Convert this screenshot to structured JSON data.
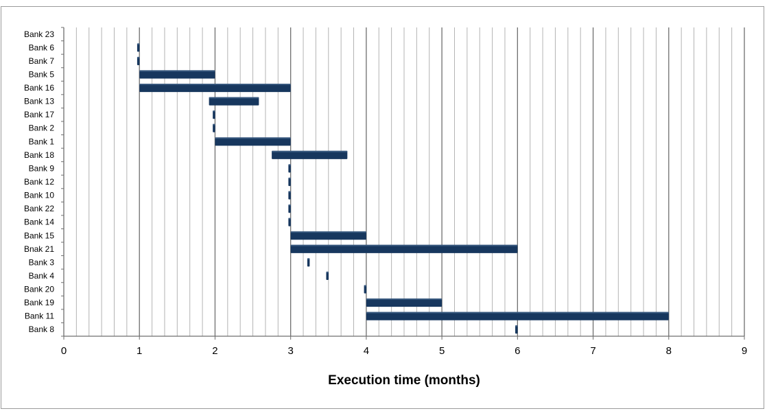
{
  "chart_data": {
    "type": "bar",
    "subtype": "floating-horizontal-gantt",
    "title": "",
    "xlabel": "Execution time (months)",
    "ylabel": "",
    "xlim": [
      0,
      9
    ],
    "x_ticks": [
      "0",
      "1",
      "2",
      "3",
      "4",
      "5",
      "6",
      "7",
      "8",
      "9"
    ],
    "minor_grid_step": 0.1667,
    "grid": true,
    "legend": "none",
    "bar_color": "#17375e",
    "categories": [
      "Bank 23",
      "Bank 6",
      "Bank 7",
      "Bank 5",
      "Bank 16",
      "Bank 13",
      "Bank 17",
      "Bank 2",
      "Bank 1",
      "Bank 18",
      "Bank 9",
      "Bank 12",
      "Bank 10",
      "Bank 22",
      "Bank 14",
      "Bank 15",
      "Bnak 21",
      "Bank 3",
      "Bank 4",
      "Bank 20",
      "Bank 19",
      "Bank 11",
      "Bank 8"
    ],
    "start": [
      null,
      0.97,
      0.97,
      1,
      1,
      1.92,
      1.97,
      1.97,
      2,
      2.75,
      2.97,
      2.97,
      2.97,
      2.97,
      2.97,
      3,
      3,
      3.22,
      3.47,
      3.97,
      4,
      4,
      5.97
    ],
    "end": [
      null,
      1.0,
      1.0,
      2,
      3,
      2.58,
      2.0,
      2.0,
      3,
      3.75,
      3.0,
      3.0,
      3.0,
      3.0,
      3.0,
      4,
      6,
      3.25,
      3.5,
      4.0,
      5,
      8,
      6.0
    ]
  }
}
